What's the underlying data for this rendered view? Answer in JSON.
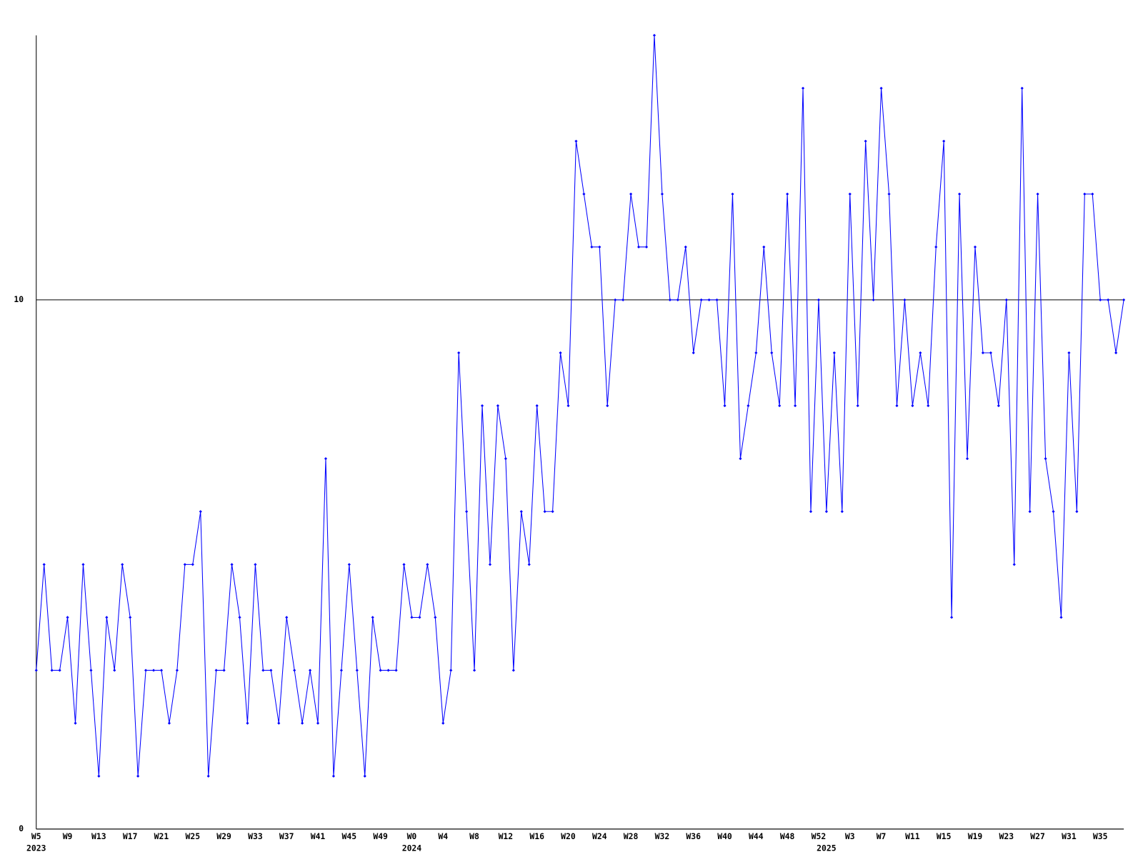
{
  "chart_data": {
    "type": "line",
    "categories": [
      "W5",
      null,
      null,
      null,
      "W9",
      null,
      null,
      null,
      "W13",
      null,
      null,
      null,
      "W17",
      null,
      null,
      null,
      "W21",
      null,
      null,
      null,
      "W25",
      null,
      null,
      null,
      "W29",
      null,
      null,
      null,
      "W33",
      null,
      null,
      null,
      "W37",
      null,
      null,
      null,
      "W41",
      null,
      null,
      null,
      "W45",
      null,
      null,
      null,
      "W49",
      null,
      null,
      null,
      "W0",
      null,
      null,
      null,
      "W4",
      null,
      null,
      null,
      "W8",
      null,
      null,
      null,
      "W12",
      null,
      null,
      null,
      "W16",
      null,
      null,
      null,
      "W20",
      null,
      null,
      null,
      "W24",
      null,
      null,
      null,
      "W28",
      null,
      null,
      null,
      "W32",
      null,
      null,
      null,
      "W36",
      null,
      null,
      null,
      "W40",
      null,
      null,
      null,
      "W44",
      null,
      null,
      null,
      "W48",
      null,
      null,
      null,
      "W52",
      null,
      null,
      null,
      "W3",
      null,
      null,
      null,
      "W7",
      null,
      null,
      null,
      "W11",
      null,
      null,
      null,
      "W15",
      null,
      null,
      null,
      "W19",
      null,
      null,
      null,
      "W23",
      null,
      null,
      null,
      "W27",
      null,
      null,
      null,
      "W31",
      null,
      null,
      null,
      "W35",
      null,
      null,
      null
    ],
    "category_years": [
      "2023",
      null,
      null,
      null,
      null,
      null,
      null,
      null,
      null,
      null,
      null,
      null,
      null,
      null,
      null,
      null,
      null,
      null,
      null,
      null,
      null,
      null,
      null,
      null,
      null,
      null,
      null,
      null,
      null,
      null,
      null,
      null,
      null,
      null,
      null,
      null,
      null,
      null,
      null,
      null,
      null,
      null,
      null,
      null,
      null,
      null,
      null,
      null,
      "2024",
      null,
      null,
      null,
      null,
      null,
      null,
      null,
      null,
      null,
      null,
      null,
      null,
      null,
      null,
      null,
      null,
      null,
      null,
      null,
      null,
      null,
      null,
      null,
      null,
      null,
      null,
      null,
      null,
      null,
      null,
      null,
      null,
      null,
      null,
      null,
      null,
      null,
      null,
      null,
      null,
      null,
      null,
      null,
      null,
      null,
      null,
      null,
      null,
      null,
      null,
      null,
      null,
      "2025",
      null,
      null,
      null,
      null,
      null,
      null,
      null,
      null,
      null,
      null,
      null,
      null,
      null,
      null,
      null,
      null,
      null,
      null,
      null,
      null,
      null,
      null,
      null,
      null,
      null,
      null,
      null,
      null,
      null,
      null,
      null,
      null,
      null,
      null,
      null,
      null,
      null,
      null
    ],
    "values": [
      3,
      5,
      3,
      3,
      4,
      2,
      5,
      3,
      1,
      4,
      3,
      5,
      4,
      1,
      3,
      3,
      3,
      2,
      3,
      5,
      5,
      6,
      1,
      3,
      3,
      5,
      4,
      2,
      5,
      3,
      3,
      2,
      4,
      3,
      2,
      3,
      2,
      7,
      1,
      3,
      5,
      3,
      1,
      4,
      3,
      3,
      3,
      5,
      4,
      4,
      5,
      4,
      2,
      3,
      9,
      6,
      3,
      8,
      5,
      8,
      7,
      3,
      6,
      5,
      8,
      6,
      6,
      9,
      8,
      13,
      12,
      11,
      11,
      8,
      10,
      10,
      12,
      11,
      11,
      15,
      12,
      10,
      10,
      11,
      9,
      10,
      10,
      10,
      8,
      12,
      7,
      8,
      9,
      11,
      9,
      8,
      12,
      8,
      14,
      6,
      10,
      6,
      9,
      6,
      12,
      8,
      13,
      10,
      14,
      12,
      8,
      10,
      8,
      9,
      8,
      11,
      13,
      4,
      12,
      7,
      11,
      9,
      9,
      8,
      10,
      5,
      14,
      6,
      12,
      7,
      6,
      4,
      9,
      6,
      12,
      12,
      10,
      10,
      9,
      10
    ],
    "color": "#0000ff",
    "ylim": [
      0,
      15
    ],
    "yticks": [
      0,
      10
    ],
    "grid": true
  }
}
